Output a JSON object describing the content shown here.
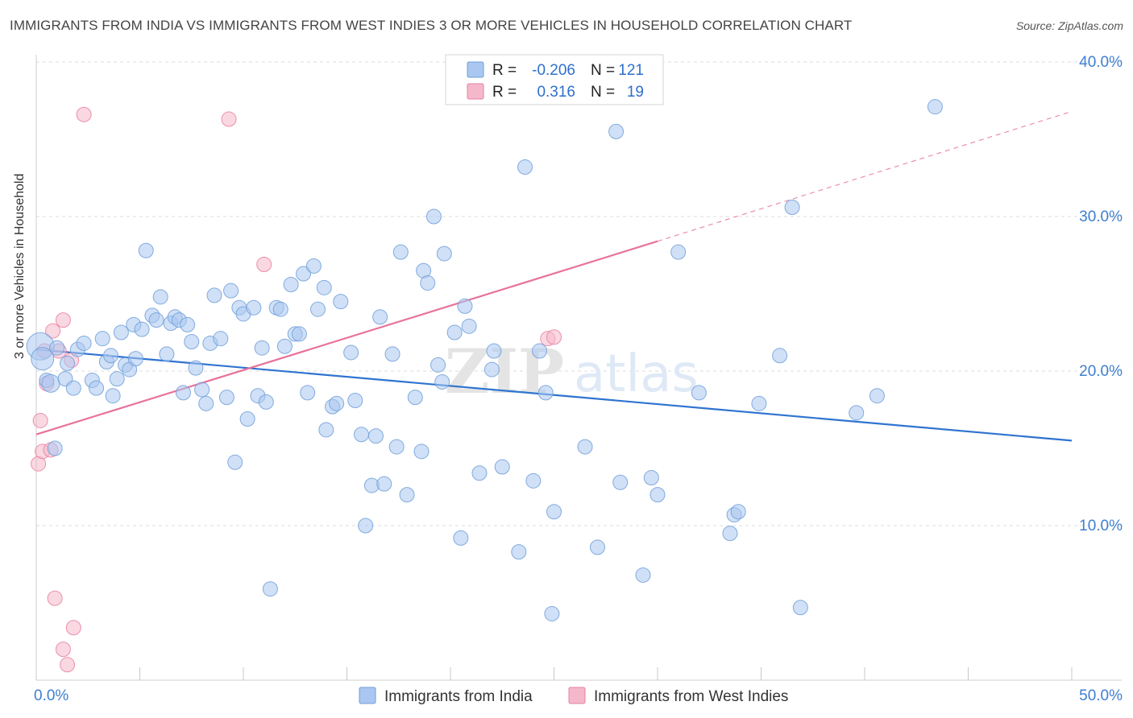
{
  "title": "IMMIGRANTS FROM INDIA VS IMMIGRANTS FROM WEST INDIES 3 OR MORE VEHICLES IN HOUSEHOLD CORRELATION CHART",
  "source": "Source: ZipAtlas.com",
  "watermark": {
    "bold": "ZIP",
    "light": "atlas"
  },
  "legend_stats": [
    {
      "r_label": "R =",
      "r_value": "-0.206",
      "n_label": "N =",
      "n_value": "121",
      "color": "#a9c7f0"
    },
    {
      "r_label": "R =",
      "r_value": "0.316",
      "n_label": "N =",
      "n_value": "19",
      "color": "#f5b8cb"
    }
  ],
  "chart_data": {
    "type": "scatter",
    "xlabel": "",
    "ylabel": "3 or more Vehicles in Household",
    "xlim": [
      0,
      50
    ],
    "ylim": [
      0,
      40
    ],
    "x_tick_labels": [
      {
        "value": 0,
        "label": "0.0%"
      },
      {
        "value": 50,
        "label": "50.0%"
      }
    ],
    "y_tick_labels": [
      {
        "value": 10,
        "label": "10.0%"
      },
      {
        "value": 20,
        "label": "20.0%"
      },
      {
        "value": 30,
        "label": "30.0%"
      },
      {
        "value": 40,
        "label": "40.0%"
      }
    ],
    "series": [
      {
        "name": "Immigrants from India",
        "color": "#a9c7f0",
        "stroke": "#6f9fd8",
        "trend_color": "#2f74d0",
        "trend": {
          "x0": 0,
          "y0": 21.4,
          "x1": 50,
          "y1": 15.5
        },
        "points": [
          [
            0.2,
            21.6
          ],
          [
            0.3,
            20.8
          ],
          [
            0.5,
            19.4
          ],
          [
            0.7,
            19.2
          ],
          [
            0.9,
            15.0
          ],
          [
            1.0,
            21.5
          ],
          [
            1.4,
            19.5
          ],
          [
            1.5,
            20.5
          ],
          [
            1.8,
            18.9
          ],
          [
            2.0,
            21.4
          ],
          [
            2.3,
            21.8
          ],
          [
            2.7,
            19.4
          ],
          [
            2.9,
            18.9
          ],
          [
            3.2,
            22.1
          ],
          [
            3.4,
            20.6
          ],
          [
            3.6,
            21.0
          ],
          [
            3.7,
            18.4
          ],
          [
            3.9,
            19.5
          ],
          [
            4.1,
            22.5
          ],
          [
            4.3,
            20.4
          ],
          [
            4.5,
            20.1
          ],
          [
            4.7,
            23.0
          ],
          [
            4.8,
            20.8
          ],
          [
            5.1,
            22.7
          ],
          [
            5.3,
            27.8
          ],
          [
            5.6,
            23.6
          ],
          [
            5.8,
            23.3
          ],
          [
            6.0,
            24.8
          ],
          [
            6.3,
            21.1
          ],
          [
            6.5,
            23.1
          ],
          [
            6.7,
            23.5
          ],
          [
            6.9,
            23.3
          ],
          [
            7.1,
            18.6
          ],
          [
            7.3,
            23.0
          ],
          [
            7.5,
            21.9
          ],
          [
            7.7,
            20.2
          ],
          [
            8.0,
            18.8
          ],
          [
            8.2,
            17.9
          ],
          [
            8.4,
            21.8
          ],
          [
            8.6,
            24.9
          ],
          [
            8.9,
            22.1
          ],
          [
            9.2,
            18.3
          ],
          [
            9.4,
            25.2
          ],
          [
            9.6,
            14.1
          ],
          [
            9.8,
            24.1
          ],
          [
            10.0,
            23.7
          ],
          [
            10.2,
            16.9
          ],
          [
            10.5,
            24.1
          ],
          [
            10.7,
            18.4
          ],
          [
            10.9,
            21.5
          ],
          [
            11.1,
            18.0
          ],
          [
            11.3,
            5.9
          ],
          [
            11.6,
            24.1
          ],
          [
            11.8,
            24.0
          ],
          [
            12.0,
            21.6
          ],
          [
            12.3,
            25.6
          ],
          [
            12.5,
            22.4
          ],
          [
            12.7,
            22.4
          ],
          [
            12.9,
            26.3
          ],
          [
            13.1,
            18.6
          ],
          [
            13.4,
            26.8
          ],
          [
            13.6,
            24.0
          ],
          [
            13.9,
            25.4
          ],
          [
            14.0,
            16.2
          ],
          [
            14.3,
            17.7
          ],
          [
            14.5,
            17.9
          ],
          [
            14.7,
            24.5
          ],
          [
            15.2,
            21.2
          ],
          [
            15.4,
            18.1
          ],
          [
            15.7,
            15.9
          ],
          [
            15.9,
            10.0
          ],
          [
            16.2,
            12.6
          ],
          [
            16.4,
            15.8
          ],
          [
            16.6,
            23.5
          ],
          [
            16.8,
            12.7
          ],
          [
            17.2,
            21.1
          ],
          [
            17.4,
            15.1
          ],
          [
            17.6,
            27.7
          ],
          [
            17.9,
            12.0
          ],
          [
            18.3,
            18.3
          ],
          [
            18.6,
            14.8
          ],
          [
            18.7,
            26.5
          ],
          [
            18.9,
            25.7
          ],
          [
            19.2,
            30.0
          ],
          [
            19.4,
            20.4
          ],
          [
            19.6,
            19.3
          ],
          [
            19.7,
            27.6
          ],
          [
            20.2,
            22.5
          ],
          [
            20.5,
            9.2
          ],
          [
            20.7,
            24.2
          ],
          [
            20.9,
            22.9
          ],
          [
            21.4,
            13.4
          ],
          [
            22.0,
            20.1
          ],
          [
            22.1,
            21.3
          ],
          [
            22.5,
            13.8
          ],
          [
            23.3,
            8.3
          ],
          [
            23.6,
            33.2
          ],
          [
            24.0,
            12.9
          ],
          [
            24.3,
            21.3
          ],
          [
            24.6,
            18.6
          ],
          [
            24.9,
            4.3
          ],
          [
            25.0,
            10.9
          ],
          [
            26.5,
            15.1
          ],
          [
            27.1,
            8.6
          ],
          [
            28.0,
            35.5
          ],
          [
            28.2,
            12.8
          ],
          [
            29.3,
            6.8
          ],
          [
            29.7,
            13.1
          ],
          [
            30.0,
            12.0
          ],
          [
            31.0,
            27.7
          ],
          [
            32.0,
            18.6
          ],
          [
            33.5,
            9.5
          ],
          [
            33.7,
            10.7
          ],
          [
            33.9,
            10.9
          ],
          [
            34.9,
            17.9
          ],
          [
            35.9,
            21.0
          ],
          [
            36.5,
            30.6
          ],
          [
            36.9,
            4.7
          ],
          [
            39.6,
            17.3
          ],
          [
            40.6,
            18.4
          ],
          [
            43.4,
            37.1
          ]
        ]
      },
      {
        "name": "Immigrants from West Indies",
        "color": "#f5b8cb",
        "stroke": "#e77fa0",
        "trend_color": "#e8729a",
        "trend": {
          "x0": 0,
          "y0": 15.9,
          "x1": 30,
          "y1": 28.4
        },
        "trend_dashed_to": {
          "x": 50,
          "y": 36.8
        },
        "points": [
          [
            0.1,
            14.0
          ],
          [
            0.2,
            16.8
          ],
          [
            0.3,
            14.8
          ],
          [
            0.4,
            21.3
          ],
          [
            0.5,
            19.2
          ],
          [
            0.7,
            14.9
          ],
          [
            0.8,
            22.6
          ],
          [
            0.9,
            5.3
          ],
          [
            1.1,
            21.3
          ],
          [
            1.3,
            23.3
          ],
          [
            1.3,
            2.0
          ],
          [
            1.5,
            1.0
          ],
          [
            1.7,
            20.7
          ],
          [
            1.8,
            3.4
          ],
          [
            2.3,
            36.6
          ],
          [
            9.3,
            36.3
          ],
          [
            11.0,
            26.9
          ],
          [
            24.7,
            22.1
          ],
          [
            25.0,
            22.2
          ]
        ]
      }
    ]
  }
}
